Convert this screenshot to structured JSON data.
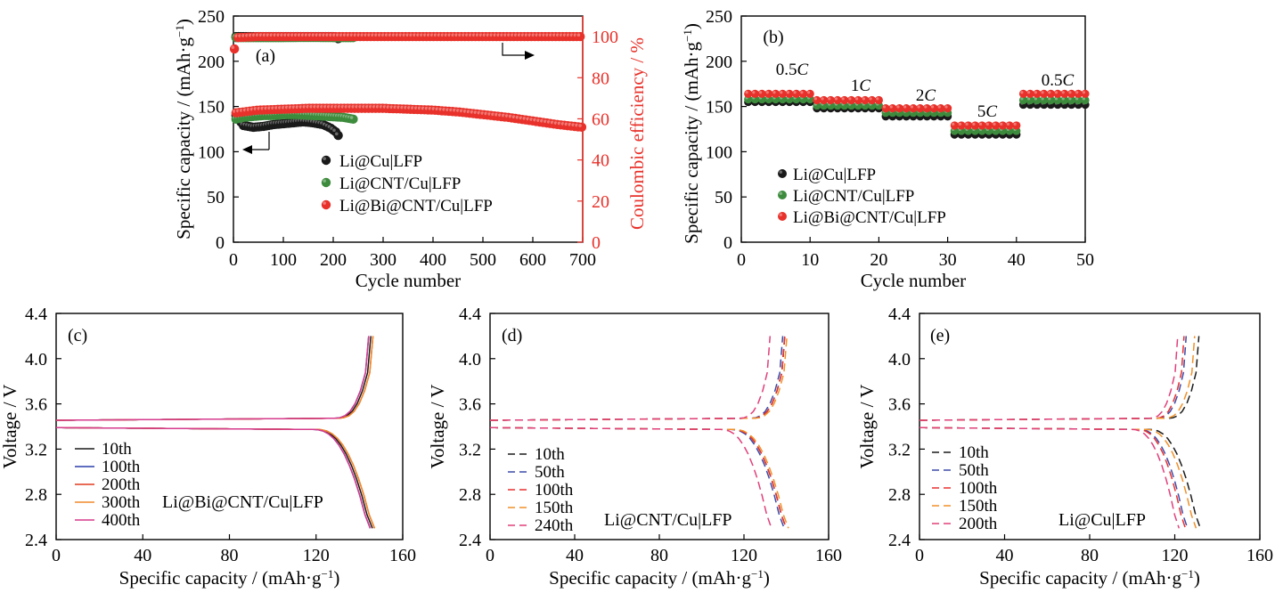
{
  "figure": {
    "panels": [
      "(a)",
      "(b)",
      "(c)",
      "(d)",
      "(e)"
    ]
  },
  "colors": {
    "black": "#1a1a1a",
    "green": "#3d8b3d",
    "red": "#e8312a",
    "blue": "#2a3fa8",
    "red2": "#e03a1e",
    "orange": "#f08a2a",
    "magenta": "#d63a8c",
    "navy": "#3c4ba8",
    "dash_red": "#e83030",
    "dash_orange": "#f0902a",
    "dash_pink": "#e0407a",
    "axis": "#000000"
  },
  "chart_data": [
    {
      "id": "a",
      "type": "scatter",
      "panel_label": "(a)",
      "xlabel": "Cycle number",
      "ylabel": "Specific capacity / (mAh·g⁻¹)",
      "y2label": "Coulombic efficiency / %",
      "xlim": [
        0,
        700
      ],
      "ylim": [
        0,
        250
      ],
      "y2lim": [
        0,
        110
      ],
      "xticks": [
        0,
        100,
        200,
        300,
        400,
        500,
        600,
        700
      ],
      "yticks": [
        0,
        50,
        100,
        150,
        200,
        250
      ],
      "y2ticks": [
        0,
        20,
        40,
        60,
        80,
        100
      ],
      "legend": [
        "Li@Cu|LFP",
        "Li@CNT/Cu|LFP",
        "Li@Bi@CNT/Cu|LFP"
      ],
      "capacity_series": [
        {
          "name": "Li@Cu|LFP",
          "x": [
            5,
            20,
            40,
            60,
            80,
            100,
            120,
            140,
            160,
            180,
            195,
            205,
            210
          ],
          "y": [
            140,
            129,
            127,
            128,
            130,
            131,
            132,
            133,
            132,
            130,
            126,
            122,
            118
          ]
        },
        {
          "name": "Li@CNT/Cu|LFP",
          "x": [
            5,
            20,
            40,
            60,
            80,
            100,
            130,
            160,
            190,
            220,
            240
          ],
          "y": [
            136,
            138,
            139,
            140,
            140,
            141,
            141,
            140,
            139,
            138,
            136
          ]
        },
        {
          "name": "Li@Bi@CNT/Cu|LFP",
          "x": [
            5,
            20,
            50,
            100,
            150,
            200,
            250,
            300,
            350,
            400,
            450,
            500,
            550,
            600,
            650,
            700
          ],
          "y": [
            143,
            144,
            146,
            147,
            148,
            148,
            148,
            148,
            147,
            146,
            144,
            141,
            138,
            134,
            130,
            127
          ]
        }
      ],
      "ce_series": [
        {
          "name": "Li@Cu|LFP",
          "x": [
            5,
            50,
            100,
            150,
            200,
            210
          ],
          "y": [
            100,
            100,
            100,
            100,
            100,
            99
          ]
        },
        {
          "name": "Li@CNT/Cu|LFP",
          "x": [
            5,
            50,
            100,
            150,
            200,
            240
          ],
          "y": [
            99.5,
            99.5,
            99.5,
            99.6,
            99.5,
            99.5
          ]
        },
        {
          "name": "Li@Bi@CNT/Cu|LFP",
          "x": [
            2,
            5,
            50,
            200,
            400,
            600,
            700
          ],
          "y": [
            94,
            99.5,
            100,
            100,
            100,
            100,
            100
          ]
        }
      ]
    },
    {
      "id": "b",
      "type": "scatter",
      "panel_label": "(b)",
      "xlabel": "Cycle number",
      "ylabel": "Specific capacity / (mAh·g⁻¹)",
      "xlim": [
        0,
        50
      ],
      "ylim": [
        0,
        250
      ],
      "xticks": [
        0,
        10,
        20,
        30,
        40,
        50
      ],
      "yticks": [
        0,
        50,
        100,
        150,
        200,
        250
      ],
      "legend": [
        "Li@Cu|LFP",
        "Li@CNT/Cu|LFP",
        "Li@Bi@CNT/Cu|LFP"
      ],
      "rate_labels": [
        {
          "num": "0.5",
          "unit": "C"
        },
        {
          "num": "1",
          "unit": "C"
        },
        {
          "num": "2",
          "unit": "C"
        },
        {
          "num": "5",
          "unit": "C"
        },
        {
          "num": "0.5",
          "unit": "C"
        }
      ],
      "series": [
        {
          "name": "Li@Cu|LFP",
          "step_values": [
            155,
            148,
            139,
            119,
            152
          ]
        },
        {
          "name": "Li@CNT/Cu|LFP",
          "step_values": [
            158,
            151,
            143,
            123,
            157
          ]
        },
        {
          "name": "Li@Bi@CNT/Cu|LFP",
          "step_values": [
            164,
            157,
            148,
            129,
            164
          ]
        }
      ]
    },
    {
      "id": "c",
      "type": "line",
      "panel_label": "(c)",
      "sample": "Li@Bi@CNT/Cu|LFP",
      "xlabel": "Specific capacity / (mAh·g⁻¹)",
      "ylabel": "Voltage / V",
      "xlim": [
        0,
        160
      ],
      "ylim": [
        2.4,
        4.4
      ],
      "xticks": [
        0,
        40,
        80,
        120,
        160
      ],
      "yticks": [
        "2.4",
        "2.8",
        "3.2",
        "3.6",
        "4.0",
        "4.4"
      ],
      "dashed": false,
      "series": [
        {
          "name": "10th",
          "capacity": 146
        },
        {
          "name": "100th",
          "capacity": 145
        },
        {
          "name": "200th",
          "capacity": 147
        },
        {
          "name": "300th",
          "capacity": 147
        },
        {
          "name": "400th",
          "capacity": 145
        }
      ]
    },
    {
      "id": "d",
      "type": "line",
      "panel_label": "(d)",
      "sample": "Li@CNT/Cu|LFP",
      "xlabel": "Specific capacity / (mAh·g⁻¹)",
      "ylabel": "Voltage / V",
      "xlim": [
        0,
        160
      ],
      "ylim": [
        2.4,
        4.4
      ],
      "xticks": [
        0,
        40,
        80,
        120,
        160
      ],
      "yticks": [
        "2.4",
        "2.8",
        "3.2",
        "3.6",
        "4.0",
        "4.4"
      ],
      "dashed": true,
      "series": [
        {
          "name": "10th",
          "capacity": 140
        },
        {
          "name": "50th",
          "capacity": 139
        },
        {
          "name": "100th",
          "capacity": 140
        },
        {
          "name": "150th",
          "capacity": 141
        },
        {
          "name": "240th",
          "capacity": 133
        }
      ]
    },
    {
      "id": "e",
      "type": "line",
      "panel_label": "(e)",
      "sample": "Li@Cu|LFP",
      "xlabel": "Specific capacity / (mAh·g⁻¹)",
      "ylabel": "Voltage / V",
      "xlim": [
        0,
        160
      ],
      "ylim": [
        2.4,
        4.4
      ],
      "xticks": [
        0,
        40,
        80,
        120,
        160
      ],
      "yticks": [
        "2.4",
        "2.8",
        "3.2",
        "3.6",
        "4.0",
        "4.4"
      ],
      "dashed": true,
      "series": [
        {
          "name": "10th",
          "capacity": 132
        },
        {
          "name": "50th",
          "capacity": 126
        },
        {
          "name": "100th",
          "capacity": 125
        },
        {
          "name": "150th",
          "capacity": 130
        },
        {
          "name": "200th",
          "capacity": 122
        }
      ]
    }
  ]
}
